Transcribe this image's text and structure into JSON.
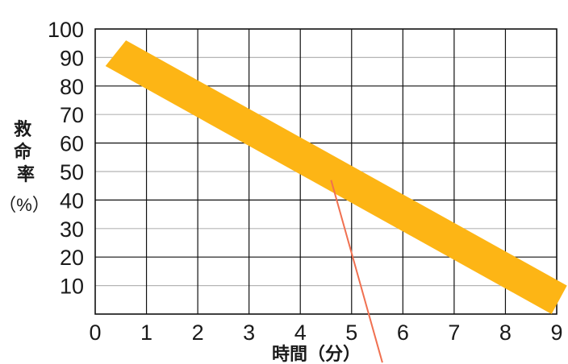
{
  "chart_data": {
    "type": "area",
    "title": "",
    "xlabel": "時間（分）",
    "ylabel": "救命率",
    "ylabel_unit": "（%）",
    "xlim": [
      0,
      9
    ],
    "ylim": [
      0,
      100
    ],
    "x_ticks": [
      0,
      1,
      2,
      3,
      4,
      5,
      6,
      7,
      8,
      9
    ],
    "y_ticks": [
      10,
      20,
      30,
      40,
      50,
      60,
      70,
      80,
      90,
      100
    ],
    "grid": true,
    "band": {
      "upper": [
        [
          0.6,
          96
        ],
        [
          9.2,
          10
        ]
      ],
      "lower": [
        [
          0.2,
          87
        ],
        [
          8.9,
          0
        ]
      ]
    },
    "pointer": [
      [
        4.6,
        47
      ],
      [
        5.1,
        15
      ],
      [
        5.6,
        -17
      ]
    ],
    "colors": {
      "band": "#FDB515",
      "pointer": "#F07050",
      "grid_major": "#111111",
      "grid_minor": "#b5b5b5"
    }
  }
}
